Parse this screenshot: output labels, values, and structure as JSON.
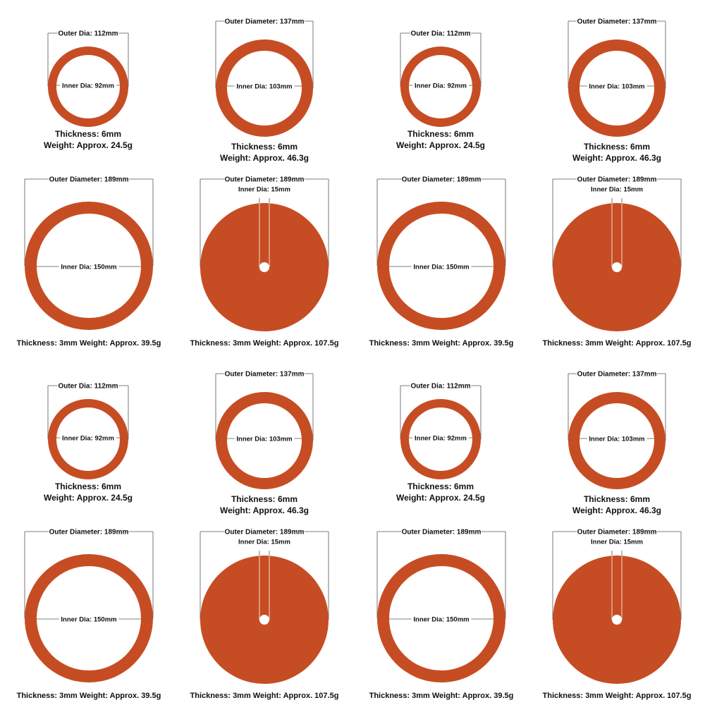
{
  "colors": {
    "gasket": "#c64d23",
    "dim_line": "#555555",
    "text": "#111111",
    "background": "#ffffff"
  },
  "gaskets": [
    {
      "type": "ring",
      "outer_label": "Outer Dia: 112mm",
      "inner_label": "Inner Dia: 92mm",
      "spec_lines": [
        "Thickness: 6mm",
        "Weight: Approx. 24.5g"
      ]
    },
    {
      "type": "ring",
      "outer_label": "Outer Diameter: 137mm",
      "inner_label": "Inner Dia: 103mm",
      "spec_lines": [
        "Thickness: 6mm",
        "Weight: Approx. 46.3g"
      ]
    },
    {
      "type": "ring",
      "outer_label": "Outer Dia: 112mm",
      "inner_label": "Inner Dia: 92mm",
      "spec_lines": [
        "Thickness: 6mm",
        "Weight: Approx. 24.5g"
      ]
    },
    {
      "type": "ring",
      "outer_label": "Outer Diameter: 137mm",
      "inner_label": "Inner Dia: 103mm",
      "spec_lines": [
        "Thickness: 6mm",
        "Weight: Approx. 46.3g"
      ]
    },
    {
      "type": "ring",
      "outer_label": "Outer Diameter: 189mm",
      "inner_label": "Inner Dia: 150mm",
      "spec_lines": [
        "Thickness: 3mm  Weight: Approx. 39.5g"
      ]
    },
    {
      "type": "disc",
      "outer_label": "Outer Diameter: 189mm",
      "inner_label": "Inner Dia: 15mm",
      "spec_lines": [
        "Thickness: 3mm  Weight: Approx. 107.5g"
      ]
    },
    {
      "type": "ring",
      "outer_label": "Outer Diameter: 189mm",
      "inner_label": "Inner Dia: 150mm",
      "spec_lines": [
        "Thickness: 3mm  Weight: Approx. 39.5g"
      ]
    },
    {
      "type": "disc",
      "outer_label": "Outer Diameter: 189mm",
      "inner_label": "Inner Dia: 15mm",
      "spec_lines": [
        "Thickness: 3mm  Weight: Approx. 107.5g"
      ]
    },
    {
      "type": "ring",
      "outer_label": "Outer Dia: 112mm",
      "inner_label": "Inner Dia: 92mm",
      "spec_lines": [
        "Thickness: 6mm",
        "Weight: Approx. 24.5g"
      ]
    },
    {
      "type": "ring",
      "outer_label": "Outer Diameter: 137mm",
      "inner_label": "Inner Dia: 103mm",
      "spec_lines": [
        "Thickness: 6mm",
        "Weight: Approx. 46.3g"
      ]
    },
    {
      "type": "ring",
      "outer_label": "Outer Dia: 112mm",
      "inner_label": "Inner Dia: 92mm",
      "spec_lines": [
        "Thickness: 6mm",
        "Weight: Approx. 24.5g"
      ]
    },
    {
      "type": "ring",
      "outer_label": "Outer Diameter: 137mm",
      "inner_label": "Inner Dia: 103mm",
      "spec_lines": [
        "Thickness: 6mm",
        "Weight: Approx. 46.3g"
      ]
    },
    {
      "type": "ring",
      "outer_label": "Outer Diameter: 189mm",
      "inner_label": "Inner Dia: 150mm",
      "spec_lines": [
        "Thickness: 3mm  Weight: Approx. 39.5g"
      ]
    },
    {
      "type": "disc",
      "outer_label": "Outer Diameter: 189mm",
      "inner_label": "Inner Dia: 15mm",
      "spec_lines": [
        "Thickness: 3mm  Weight: Approx. 107.5g"
      ]
    },
    {
      "type": "ring",
      "outer_label": "Outer Diameter: 189mm",
      "inner_label": "Inner Dia: 150mm",
      "spec_lines": [
        "Thickness: 3mm  Weight: Approx. 39.5g"
      ]
    },
    {
      "type": "disc",
      "outer_label": "Outer Diameter: 189mm",
      "inner_label": "Inner Dia: 15mm",
      "spec_lines": [
        "Thickness: 3mm  Weight: Approx. 107.5g"
      ]
    }
  ]
}
